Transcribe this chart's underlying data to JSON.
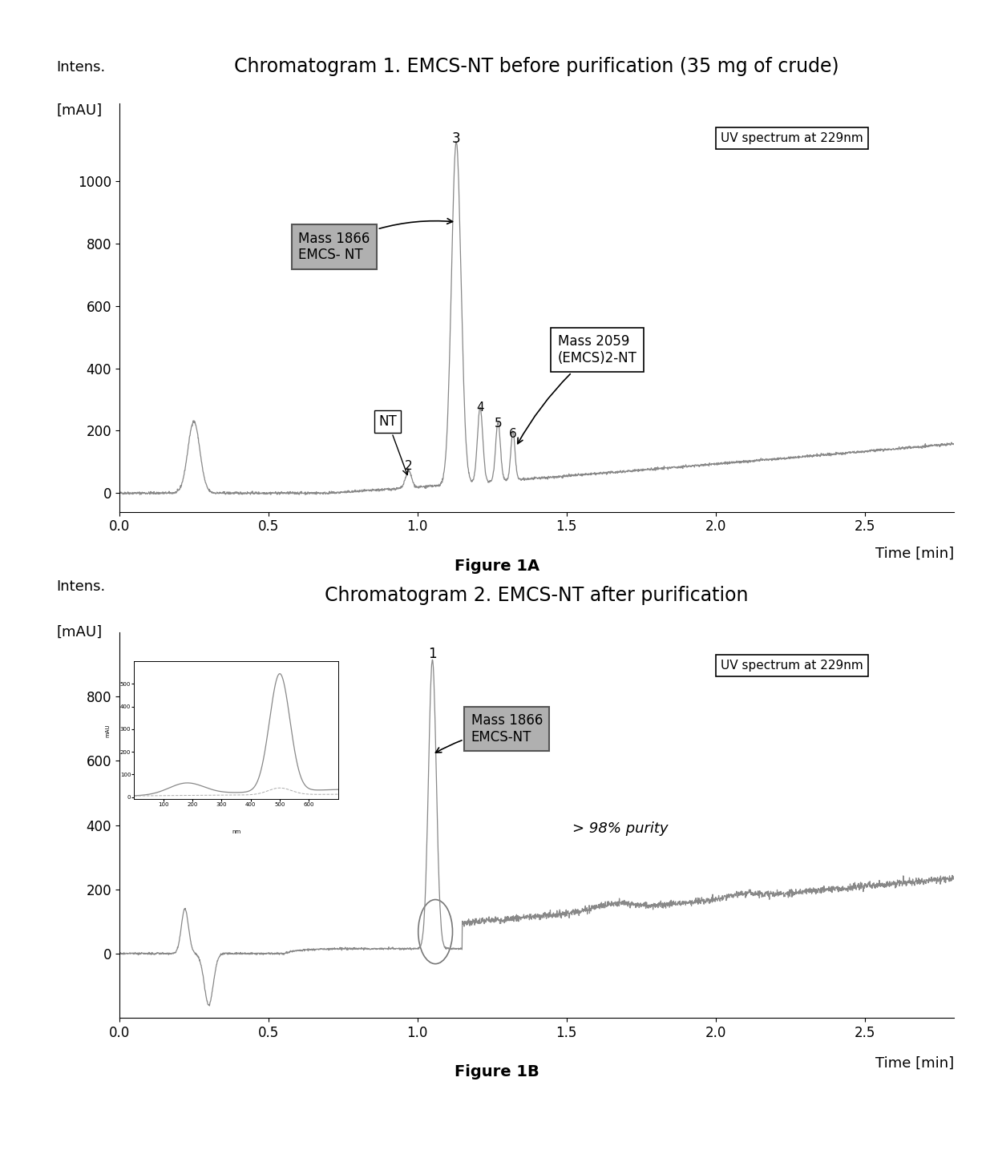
{
  "fig1a_title": "Chromatogram 1. EMCS-NT before purification (35 mg of crude)",
  "fig1b_title": "Chromatogram 2. EMCS-NT after purification",
  "fig1a_label": "Figure 1A",
  "fig1b_label": "Figure 1B",
  "ylabel": "Intens.\n[mAU]",
  "xlabel": "Time [min]",
  "uv_legend": "UV spectrum at 229nm",
  "fig1a_ylim": [
    -60,
    1250
  ],
  "fig1b_ylim": [
    -200,
    1000
  ],
  "xlim": [
    0.0,
    2.8
  ],
  "xticks": [
    0.0,
    0.5,
    1.0,
    1.5,
    2.0,
    2.5
  ],
  "fig1a_yticks": [
    0,
    200,
    400,
    600,
    800,
    1000
  ],
  "fig1b_yticks": [
    0,
    200,
    400,
    600,
    800
  ],
  "background_color": "#ffffff",
  "line_color": "#888888",
  "title_fontsize": 17,
  "label_fontsize": 13,
  "tick_fontsize": 12,
  "annotation_fontsize": 12
}
